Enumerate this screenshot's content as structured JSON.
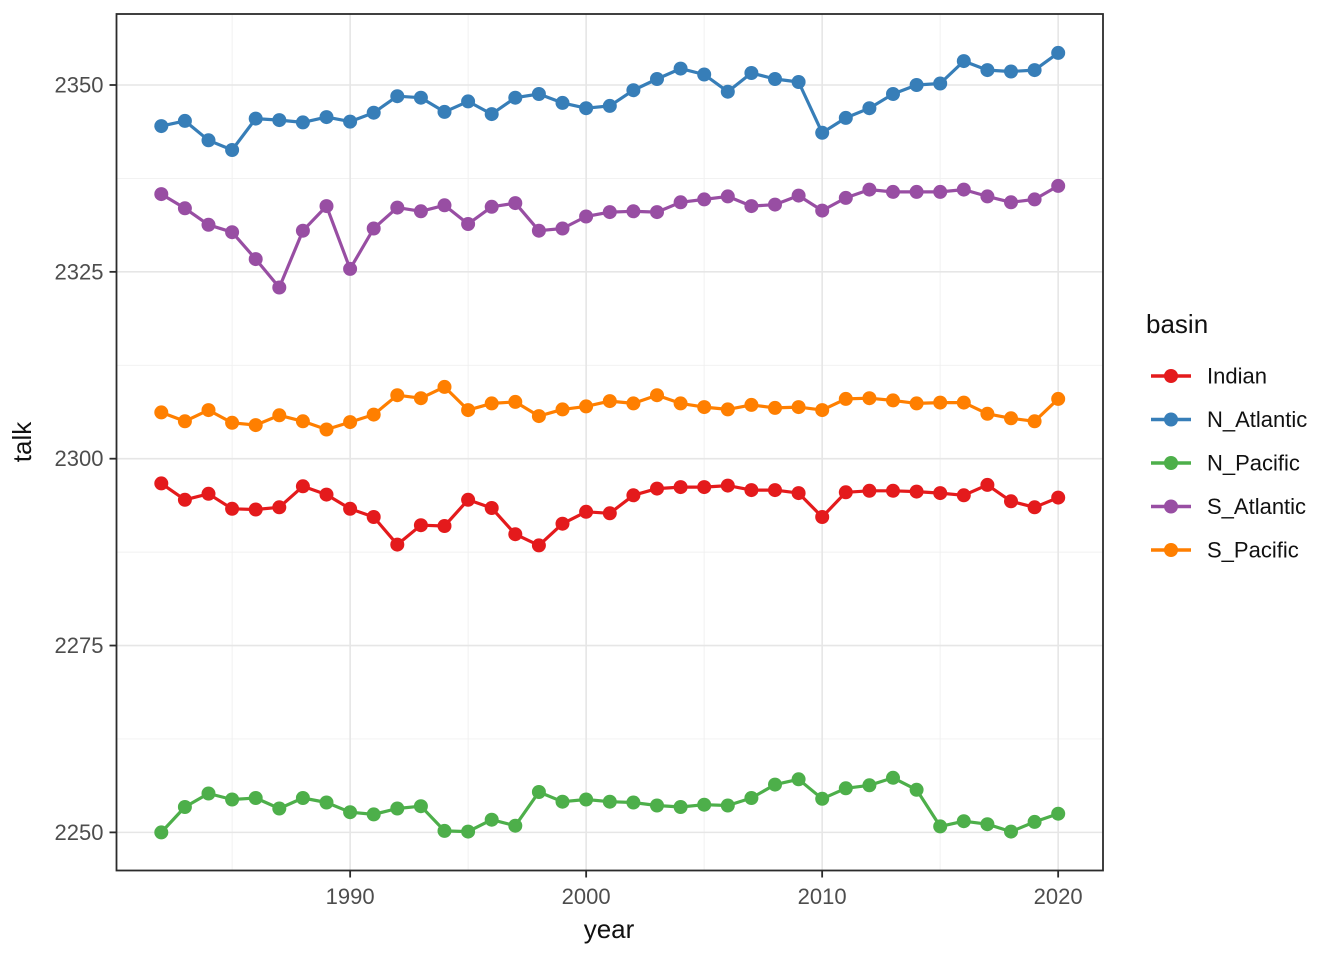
{
  "chart_data": {
    "type": "line",
    "title": "",
    "xlabel": "year",
    "ylabel": "talk",
    "legend_title": "basin",
    "legend_position": "right",
    "grid": true,
    "panel_theme": "white panel, light gray major/minor gridlines, dark panel border (ggplot theme_bw)",
    "xlim": [
      1980.1,
      2021.9
    ],
    "ylim": [
      2244.9,
      2359.5
    ],
    "x_ticks": [
      1990,
      2000,
      2010,
      2020
    ],
    "x_minor_gridlines": [
      1985,
      1995,
      2005,
      2015
    ],
    "y_ticks": [
      2250,
      2275,
      2300,
      2325,
      2350
    ],
    "y_minor_gridlines": [
      2262.5,
      2287.5,
      2312.5,
      2337.5
    ],
    "x": [
      1982,
      1983,
      1984,
      1985,
      1986,
      1987,
      1988,
      1989,
      1990,
      1991,
      1992,
      1993,
      1994,
      1995,
      1996,
      1997,
      1998,
      1999,
      2000,
      2001,
      2002,
      2003,
      2004,
      2005,
      2006,
      2007,
      2008,
      2009,
      2010,
      2011,
      2012,
      2013,
      2014,
      2015,
      2016,
      2017,
      2018,
      2019,
      2020
    ],
    "series": [
      {
        "name": "Indian",
        "color": "#e41a1c",
        "values": [
          2296.7,
          2294.5,
          2295.3,
          2293.3,
          2293.2,
          2293.5,
          2296.3,
          2295.2,
          2293.3,
          2292.2,
          2288.5,
          2291.1,
          2291.0,
          2294.5,
          2293.4,
          2289.9,
          2288.4,
          2291.3,
          2292.9,
          2292.7,
          2295.1,
          2296.0,
          2296.2,
          2296.2,
          2296.4,
          2295.8,
          2295.8,
          2295.4,
          2292.2,
          2295.5,
          2295.7,
          2295.7,
          2295.6,
          2295.4,
          2295.1,
          2296.5,
          2294.3,
          2293.5,
          2294.8
        ]
      },
      {
        "name": "N_Atlantic",
        "color": "#377eb8",
        "values": [
          2344.5,
          2345.2,
          2342.6,
          2341.3,
          2345.5,
          2345.3,
          2345.0,
          2345.7,
          2345.1,
          2346.3,
          2348.5,
          2348.3,
          2346.4,
          2347.8,
          2346.1,
          2348.3,
          2348.8,
          2347.6,
          2346.9,
          2347.2,
          2349.3,
          2350.8,
          2352.2,
          2351.4,
          2349.1,
          2351.6,
          2350.8,
          2350.4,
          2343.6,
          2345.6,
          2346.9,
          2348.8,
          2350.0,
          2350.2,
          2353.2,
          2352.0,
          2351.8,
          2352.0,
          2354.3
        ]
      },
      {
        "name": "N_Pacific",
        "color": "#4daf4a",
        "values": [
          2250.0,
          2253.4,
          2255.2,
          2254.4,
          2254.6,
          2253.2,
          2254.6,
          2254.0,
          2252.7,
          2252.4,
          2253.2,
          2253.5,
          2250.2,
          2250.1,
          2251.7,
          2250.9,
          2255.4,
          2254.1,
          2254.4,
          2254.1,
          2254.0,
          2253.6,
          2253.4,
          2253.7,
          2253.6,
          2254.6,
          2256.4,
          2257.1,
          2254.5,
          2255.9,
          2256.3,
          2257.3,
          2255.7,
          2250.8,
          2251.5,
          2251.1,
          2250.1,
          2251.4,
          2252.5
        ]
      },
      {
        "name": "S_Atlantic",
        "color": "#984ea3",
        "values": [
          2335.4,
          2333.5,
          2331.3,
          2330.3,
          2326.7,
          2322.9,
          2330.5,
          2333.8,
          2325.4,
          2330.8,
          2333.6,
          2333.1,
          2333.9,
          2331.4,
          2333.7,
          2334.2,
          2330.5,
          2330.8,
          2332.4,
          2333.0,
          2333.1,
          2333.0,
          2334.3,
          2334.7,
          2335.1,
          2333.8,
          2334.0,
          2335.2,
          2333.2,
          2334.9,
          2336.0,
          2335.7,
          2335.7,
          2335.7,
          2336.0,
          2335.1,
          2334.3,
          2334.7,
          2336.5
        ]
      },
      {
        "name": "S_Pacific",
        "color": "#ff7f00",
        "values": [
          2306.2,
          2305.0,
          2306.5,
          2304.8,
          2304.5,
          2305.8,
          2305.0,
          2303.9,
          2304.9,
          2305.9,
          2308.5,
          2308.1,
          2309.6,
          2306.5,
          2307.4,
          2307.6,
          2305.7,
          2306.6,
          2307.0,
          2307.7,
          2307.4,
          2308.5,
          2307.4,
          2306.9,
          2306.6,
          2307.2,
          2306.8,
          2306.9,
          2306.5,
          2308.0,
          2308.1,
          2307.8,
          2307.4,
          2307.5,
          2307.5,
          2306.0,
          2305.4,
          2305.0,
          2308.0
        ]
      }
    ],
    "style": {
      "panel_background": "#ffffff",
      "major_gridline_color": "#e6e6e6",
      "minor_gridline_color": "#f0f0f0",
      "panel_border_color": "#2b2b2b",
      "tick_label_color": "#4d4d4d",
      "axis_title_color": "#111111"
    }
  }
}
